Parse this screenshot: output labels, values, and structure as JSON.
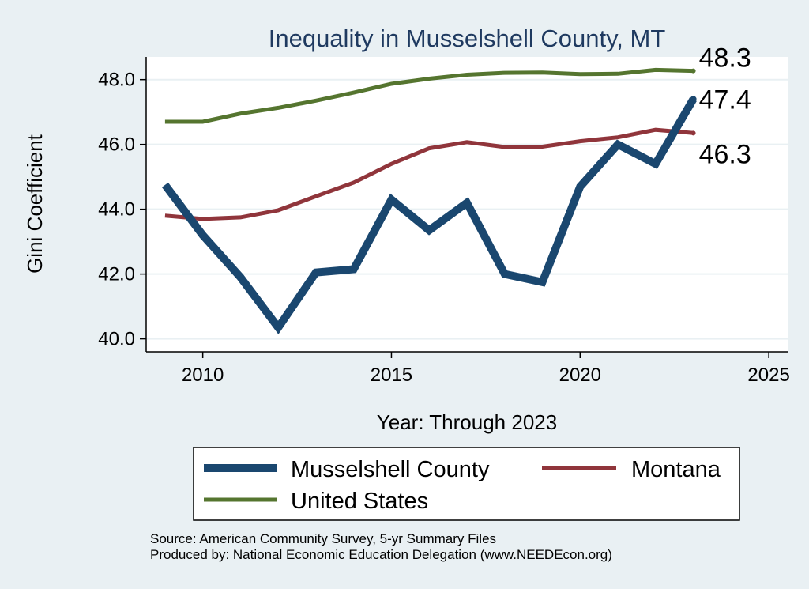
{
  "chart_data": {
    "type": "line",
    "title": "Inequality in Musselshell County, MT",
    "xlabel": "Year: Through 2023",
    "ylabel": "Gini Coefficient",
    "xlim": [
      2008.5,
      2025.5
    ],
    "ylim": [
      39.6,
      48.7
    ],
    "xticks": [
      2010,
      2015,
      2020,
      2025
    ],
    "yticks": [
      40.0,
      42.0,
      44.0,
      46.0,
      48.0
    ],
    "ytick_labels": [
      "40.0",
      "42.0",
      "44.0",
      "46.0",
      "48.0"
    ],
    "x": [
      2009,
      2010,
      2011,
      2012,
      2013,
      2014,
      2015,
      2016,
      2017,
      2018,
      2019,
      2020,
      2021,
      2022,
      2023
    ],
    "series": [
      {
        "name": "Musselshell County",
        "color": "#1a476f",
        "values": [
          44.75,
          43.2,
          41.9,
          40.35,
          42.05,
          42.15,
          44.3,
          43.35,
          44.2,
          42.0,
          41.75,
          44.7,
          46.0,
          45.4,
          47.4
        ],
        "end_label": "47.4"
      },
      {
        "name": "Montana",
        "color": "#90353b",
        "values": [
          43.8,
          43.7,
          43.75,
          43.97,
          44.4,
          44.82,
          45.4,
          45.88,
          46.07,
          45.92,
          45.93,
          46.1,
          46.22,
          46.45,
          46.35
        ],
        "end_label": "46.3"
      },
      {
        "name": "United States",
        "color": "#55752f",
        "values": [
          46.7,
          46.7,
          46.95,
          47.13,
          47.35,
          47.6,
          47.87,
          48.03,
          48.15,
          48.21,
          48.22,
          48.17,
          48.18,
          48.3,
          48.27
        ],
        "end_label": "48.3"
      }
    ],
    "legend": {
      "position": "bottom",
      "entries": [
        "Musselshell County",
        "Montana",
        "United States"
      ]
    },
    "notes": [
      "Source: American Community Survey, 5-yr Summary Files",
      "Produced by: National Economic Education Delegation (www.NEEDEcon.org)"
    ]
  }
}
